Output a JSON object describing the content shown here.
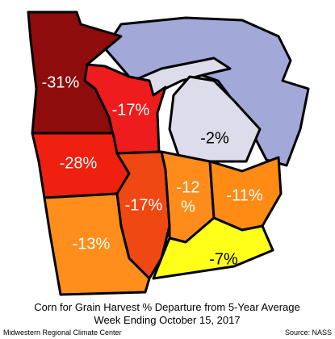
{
  "map": {
    "regions": [
      {
        "label": "-31%",
        "color": "#8e0c0c"
      },
      {
        "label": "-17%",
        "color": "#ee1c1c"
      },
      {
        "label": "-2%",
        "color": "#dcdcea"
      },
      {
        "label": "-28%",
        "color": "#ef2010"
      },
      {
        "label": "-17%",
        "color": "#f04812"
      },
      {
        "label": [
          "-12",
          "%"
        ],
        "color": "#ff8c1a"
      },
      {
        "label": "-11%",
        "color": "#ff8a14"
      },
      {
        "label": "-13%",
        "color": "#ff8e1c"
      },
      {
        "label": "-7%",
        "color": "#ffff1a"
      }
    ],
    "lake_color": "#a2a8d8",
    "title": [
      "Corn for Grain Harvest % Departure from 5-Year Average",
      "Week Ending October 15, 2017"
    ],
    "credit": "Midwestern Regional Climate Center",
    "source": "Source: NASS"
  }
}
